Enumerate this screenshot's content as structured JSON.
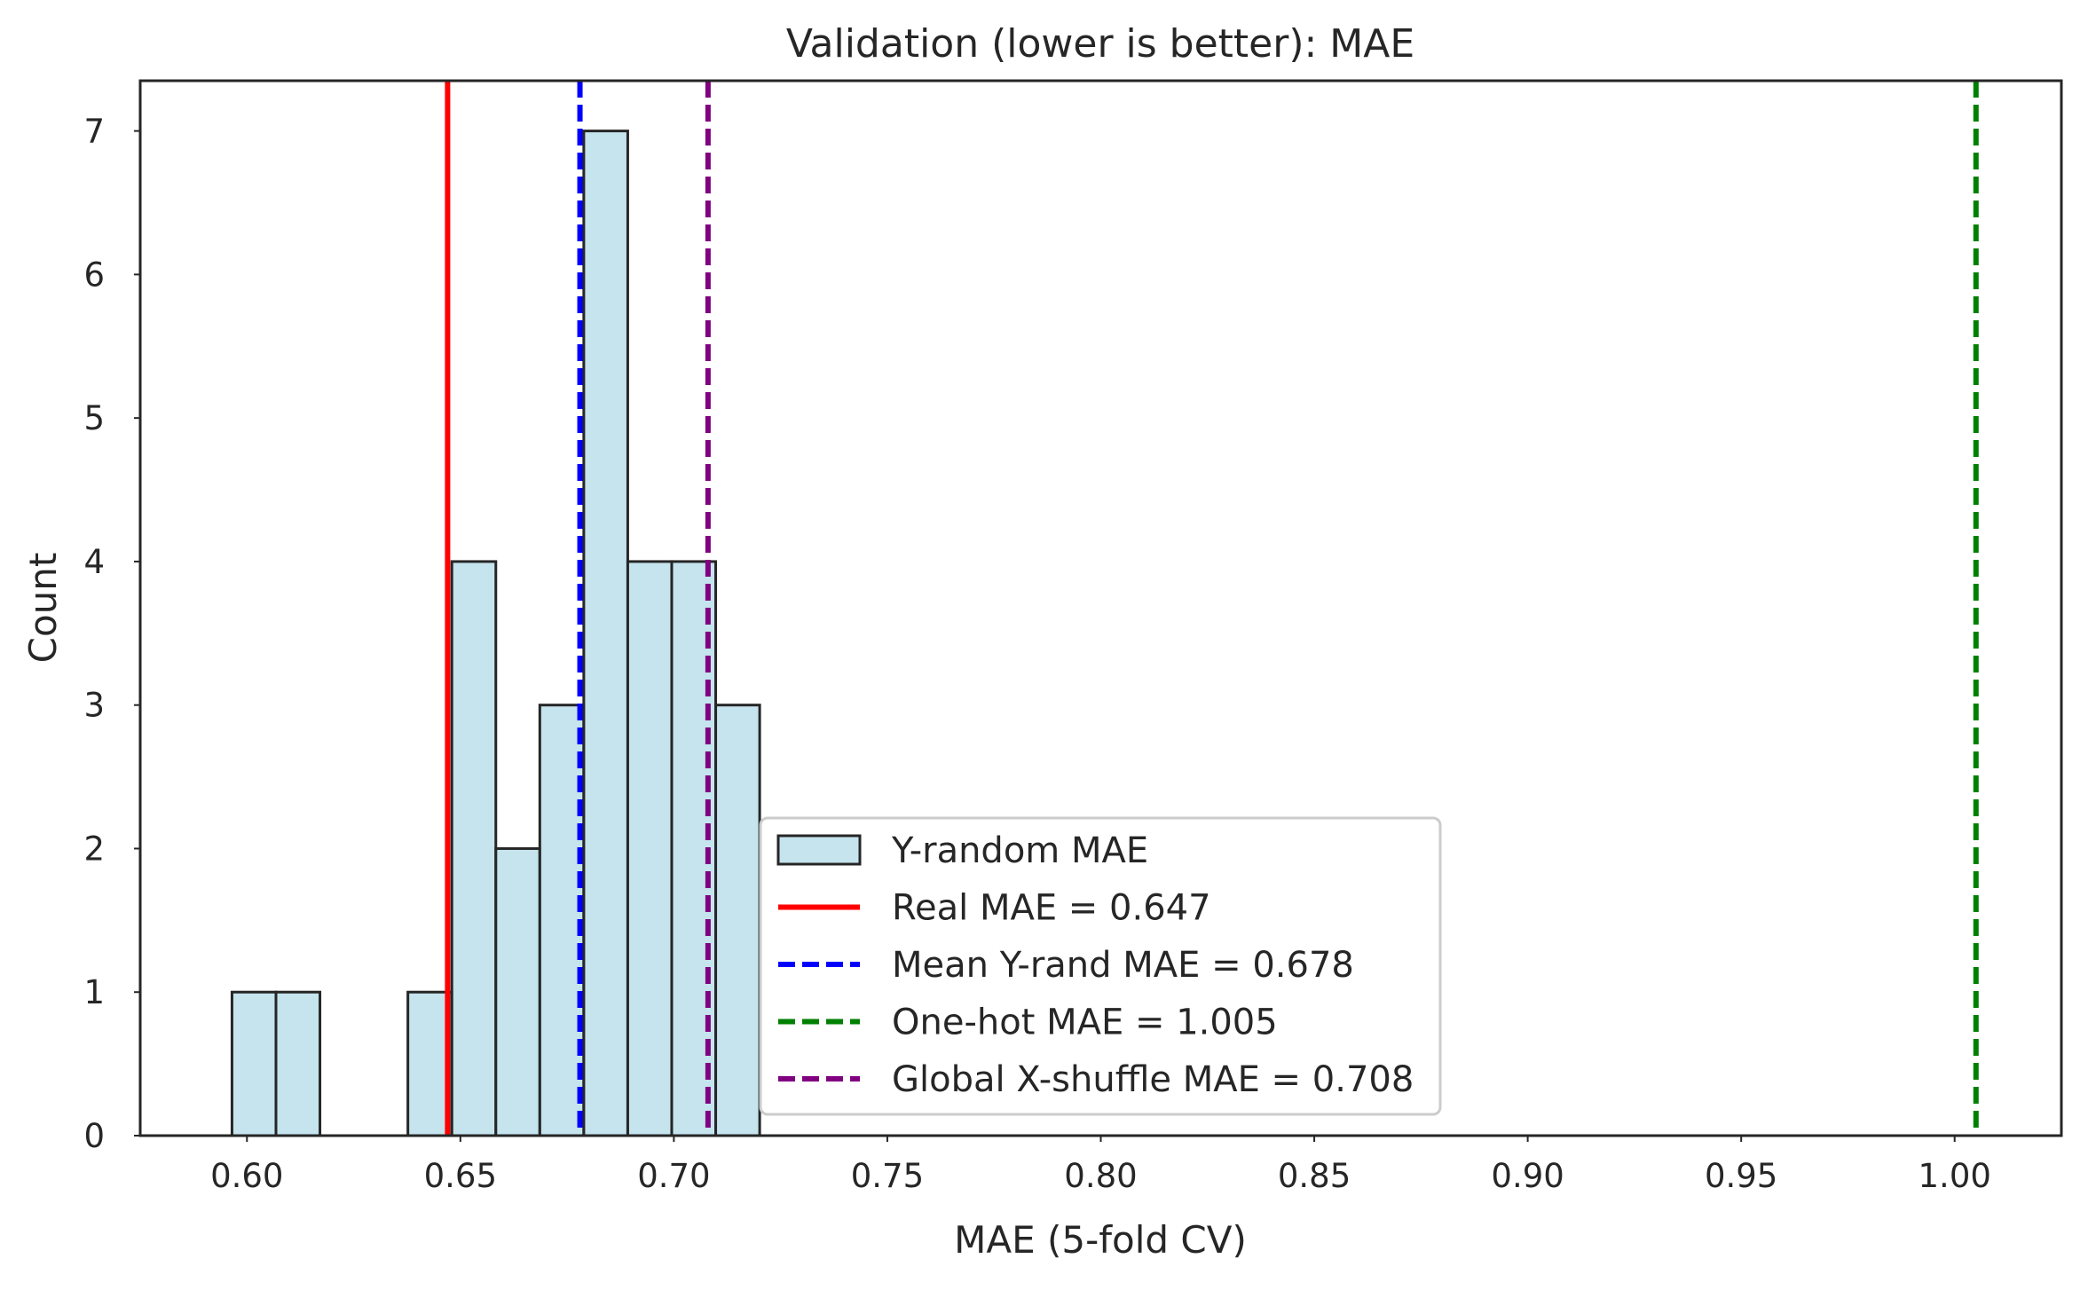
{
  "chart_data": {
    "type": "bar",
    "title": "Validation (lower is better): MAE",
    "xlabel": "MAE (5-fold CV)",
    "ylabel": "Count",
    "xlim": [
      0.575,
      1.025
    ],
    "ylim": [
      0,
      7.35
    ],
    "grid": false,
    "legend_position": "lower-center",
    "x_ticks": [
      "0.60",
      "0.65",
      "0.70",
      "0.75",
      "0.80",
      "0.85",
      "0.90",
      "0.95",
      "1.00"
    ],
    "y_ticks": [
      "0",
      "1",
      "2",
      "3",
      "4",
      "5",
      "6",
      "7"
    ],
    "histogram": {
      "name": "Y-random MAE",
      "bin_edges": [
        0.5965,
        0.6068,
        0.6171,
        0.6274,
        0.6377,
        0.648,
        0.6583,
        0.6686,
        0.6789,
        0.6892,
        0.6995,
        0.7098,
        0.7201
      ],
      "counts": [
        1,
        1,
        0,
        0,
        1,
        4,
        2,
        3,
        7,
        4,
        4,
        3
      ],
      "fill_color": "#add8e6",
      "edge_color": "#262626"
    },
    "reference_lines": [
      {
        "name": "Real MAE = 0.647",
        "value": 0.647,
        "color": "#ff0000",
        "style": "solid"
      },
      {
        "name": "Mean Y-rand MAE = 0.678",
        "value": 0.678,
        "color": "#0000ff",
        "style": "dashed"
      },
      {
        "name": "One-hot MAE = 1.005",
        "value": 1.005,
        "color": "#008000",
        "style": "dashed"
      },
      {
        "name": "Global X-shuffle MAE = 0.708",
        "value": 0.708,
        "color": "#800080",
        "style": "dashed"
      }
    ]
  }
}
